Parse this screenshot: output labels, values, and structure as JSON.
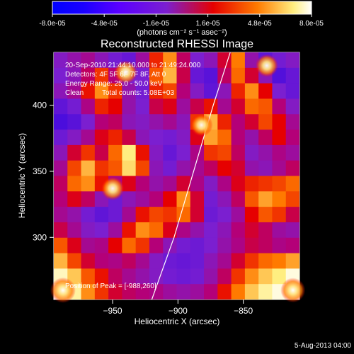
{
  "chart_data": {
    "type": "heatmap",
    "title": "Reconstructed RHESSI Image",
    "xlabel": "Heliocentric X (arcsec)",
    "ylabel": "Heliocentric Y (arcsec)",
    "x_ticks": [
      -950,
      -900,
      -850
    ],
    "y_ticks": [
      300,
      350,
      400
    ],
    "xlim": [
      -995,
      -807
    ],
    "ylim": [
      253,
      440
    ],
    "colorbar": {
      "ticks": [
        "-8.0e-05",
        "-4.8e-05",
        "-1.6e-05",
        "1.6e-05",
        "4.8e-05",
        "8.0e-05"
      ],
      "range": [
        -8e-05,
        8e-05
      ],
      "unit_label": "(photons cm⁻² s⁻¹ asec⁻²)"
    },
    "annotations": [
      "20-Sep-2010 21:44:10.000 to 21:49:24.000",
      "Detectors: 4F 5F 6F 7F 8F, Att 0",
      "Energy Range: 25.0 - 50.0 keV",
      "Clean",
      "Total counts: 5.08E+03"
    ],
    "peak_label": "Position of Peak = [-988,260]",
    "footer_date": "5-Aug-2013 04:00",
    "grid": false,
    "bright_sources": [
      {
        "x": -988,
        "y": 260,
        "relative_intensity": 1.0
      },
      {
        "x": -812,
        "y": 260,
        "relative_intensity": 0.95
      },
      {
        "x": -940,
        "y": 425,
        "relative_intensity": 0.85
      },
      {
        "x": -950,
        "y": 337,
        "relative_intensity": 0.85
      },
      {
        "x": -832,
        "y": 430,
        "relative_intensity": 0.8
      },
      {
        "x": -882,
        "y": 385,
        "relative_intensity": 0.8
      }
    ],
    "limb_curve": [
      {
        "x": -920,
        "y": 253
      },
      {
        "x": -903,
        "y": 300
      },
      {
        "x": -888,
        "y": 350
      },
      {
        "x": -873,
        "y": 400
      },
      {
        "x": -860,
        "y": 440
      }
    ],
    "colormap": [
      "#0000d0",
      "#7b1fd0",
      "#e60000",
      "#ff7a00",
      "#ffee80"
    ]
  }
}
